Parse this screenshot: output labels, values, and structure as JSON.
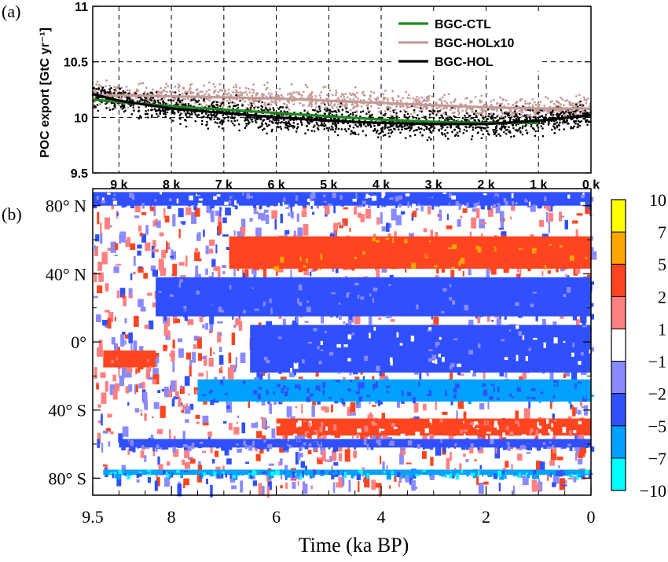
{
  "chart_data": [
    {
      "panel": "(a)",
      "type": "scatter",
      "ylabel": "POC export [GtC yr⁻¹]",
      "ylim": [
        9.5,
        11
      ],
      "xlim": [
        9.5,
        0
      ],
      "xticks": [
        "9 k",
        "8 k",
        "7 k",
        "6 k",
        "5 k",
        "4 k",
        "3 k",
        "2 k",
        "1 k",
        "0 k"
      ],
      "yticks": [
        "9.5",
        "10",
        "10.5",
        "11"
      ],
      "grid": true,
      "legend_position": "top-right",
      "series": [
        {
          "name": "BGC-CTL",
          "color": "#1a8a1a",
          "style": "line",
          "x": [
            9.5,
            9.0,
            8.0,
            7.0,
            6.0,
            5.0,
            4.0,
            3.0,
            2.0,
            1.0
          ],
          "y": [
            10.16,
            10.14,
            10.1,
            10.07,
            10.04,
            10.01,
            9.98,
            9.96,
            9.95,
            9.95
          ]
        },
        {
          "name": "BGC-HOLx10",
          "color": "#c49a96",
          "style": "line+points",
          "x": [
            9.5,
            9.0,
            8.0,
            7.0,
            6.0,
            5.0,
            4.0,
            3.0,
            2.0,
            1.0,
            0.0
          ],
          "y": [
            10.2,
            10.2,
            10.19,
            10.18,
            10.17,
            10.15,
            10.13,
            10.11,
            10.09,
            10.08,
            10.08
          ]
        },
        {
          "name": "BGC-HOL",
          "color": "#000000",
          "style": "line+points",
          "x": [
            9.5,
            9.0,
            8.0,
            7.0,
            6.0,
            5.0,
            4.0,
            3.0,
            2.0,
            1.0,
            0.0
          ],
          "y": [
            10.21,
            10.15,
            10.08,
            10.04,
            10.0,
            9.97,
            9.95,
            9.94,
            9.94,
            9.97,
            10.02
          ]
        }
      ]
    },
    {
      "panel": "(b)",
      "type": "heatmap",
      "xlabel": "Time (ka BP)",
      "xlim": [
        9.5,
        0
      ],
      "xticks": [
        "9.5",
        "8",
        "6",
        "4",
        "2",
        "0"
      ],
      "ylim": [
        -90,
        90
      ],
      "yticks": [
        "80° N",
        "40° N",
        "0°",
        "40° S",
        "80° S"
      ],
      "colorbar_labels": [
        "10",
        "7",
        "5",
        "2",
        "1",
        "−1",
        "−2",
        "−5",
        "−7",
        "−10"
      ],
      "colorbar_colors": [
        "#ffff00",
        "#ffa500",
        "#ff4520",
        "#ff8080",
        "#ffffff",
        "#8a8aff",
        "#3050ff",
        "#00a0ff",
        "#00ffff"
      ],
      "bands": [
        {
          "lat_range": [
            80,
            88
          ],
          "value": -2,
          "from_ka": 9.5,
          "to_ka": 0
        },
        {
          "lat_range": [
            43,
            62
          ],
          "value": 4,
          "from_ka": 6.9,
          "to_ka": 0
        },
        {
          "lat_range": [
            15,
            38
          ],
          "value": -3,
          "from_ka": 8.3,
          "to_ka": 0
        },
        {
          "lat_range": [
            -18,
            10
          ],
          "value": -2,
          "from_ka": 6.5,
          "to_ka": 0
        },
        {
          "lat_range": [
            -35,
            -22
          ],
          "value": -5,
          "from_ka": 7.5,
          "to_ka": 0
        },
        {
          "lat_range": [
            -55,
            -45
          ],
          "value": 2,
          "from_ka": 6.0,
          "to_ka": 0
        },
        {
          "lat_range": [
            -62,
            -57
          ],
          "value": -3,
          "from_ka": 9.0,
          "to_ka": 0
        },
        {
          "lat_range": [
            -78,
            -75
          ],
          "value": -6,
          "from_ka": 9.3,
          "to_ka": 0
        },
        {
          "lat_range": [
            -15,
            -5
          ],
          "value": 3,
          "from_ka": 9.3,
          "to_ka": 8.3
        }
      ]
    }
  ]
}
